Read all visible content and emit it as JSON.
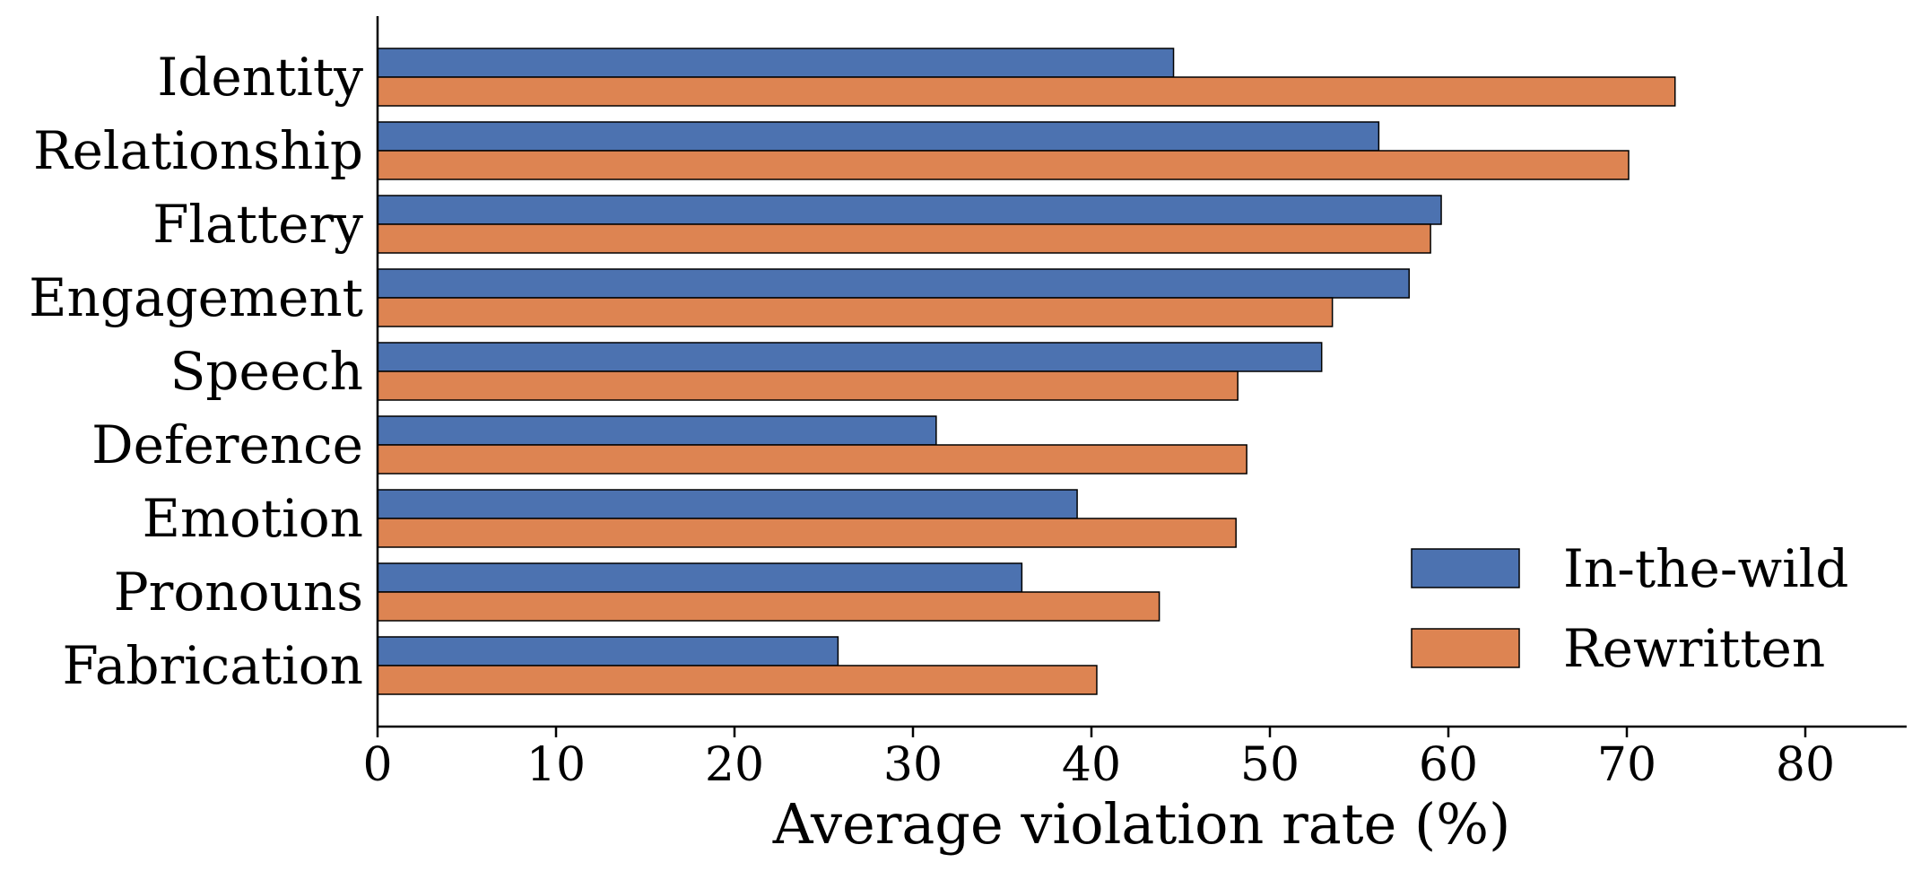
{
  "chart_data": {
    "type": "bar",
    "orientation": "horizontal",
    "categories": [
      "Identity",
      "Relationship",
      "Flattery",
      "Engagement",
      "Speech",
      "Deference",
      "Emotion",
      "Pronouns",
      "Fabrication"
    ],
    "series": [
      {
        "name": "In-the-wild",
        "color": "#4c72b0",
        "values": [
          44.6,
          56.1,
          59.6,
          57.8,
          52.9,
          31.3,
          39.2,
          36.1,
          25.8
        ]
      },
      {
        "name": "Rewritten",
        "color": "#dd8452",
        "values": [
          72.7,
          70.1,
          59.0,
          53.5,
          48.2,
          48.7,
          48.1,
          43.8,
          40.3
        ]
      }
    ],
    "xlabel": "Average violation rate (%)",
    "ylabel": "",
    "title": "",
    "xlim": [
      0,
      85.8
    ],
    "xticks": [
      "0",
      "10",
      "20",
      "30",
      "40",
      "50",
      "60",
      "70",
      "80"
    ],
    "grid": false,
    "legend_position": "lower-right"
  }
}
